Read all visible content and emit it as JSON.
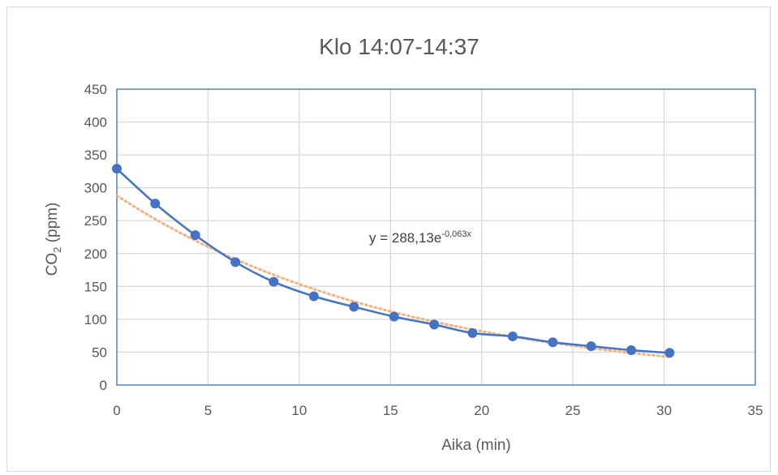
{
  "chart_data": {
    "type": "scatter",
    "title": "Klo 14:07-14:37",
    "xlabel": "Aika (min)",
    "ylabel": {
      "prefix": "CO",
      "subscript": "2",
      "suffix": " (ppm)"
    },
    "xlim": [
      0,
      35
    ],
    "ylim": [
      0,
      450
    ],
    "xticks": [
      0,
      5,
      10,
      15,
      20,
      25,
      30,
      35
    ],
    "yticks": [
      0,
      50,
      100,
      150,
      200,
      250,
      300,
      350,
      400,
      450
    ],
    "grid": true,
    "series": [
      {
        "type": "line+markers",
        "x": [
          0,
          2.1,
          4.3,
          6.5,
          8.6,
          10.8,
          13.0,
          15.2,
          17.4,
          19.5,
          21.7,
          23.9,
          26.0,
          28.2,
          30.3
        ],
        "y": [
          329,
          276,
          228,
          187,
          157,
          135,
          119,
          104,
          92,
          79,
          74,
          65,
          59,
          53,
          49
        ],
        "color": "#4472c4"
      },
      {
        "type": "trendline",
        "model": "exponential",
        "a": 288.13,
        "b": -0.063,
        "x_range": [
          0,
          30.3
        ],
        "style": "dotted",
        "color": "#f4b183"
      }
    ],
    "annotations": [
      {
        "text": "y = 288,13e",
        "superscript": "-0,063x"
      }
    ]
  }
}
